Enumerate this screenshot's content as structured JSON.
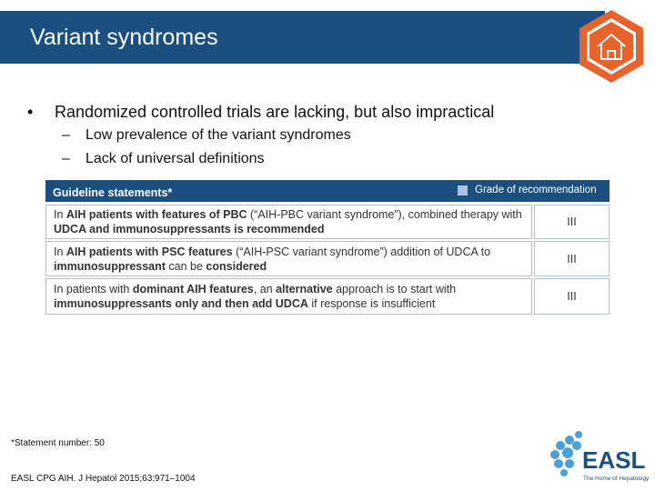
{
  "header": {
    "title": "Variant syndromes"
  },
  "bullets": [
    {
      "text": "Randomized controlled trials are lacking, but also impractical",
      "subs": [
        "Low prevalence of the variant syndromes",
        "Lack of universal definitions"
      ]
    }
  ],
  "table": {
    "header": "Guideline statements*",
    "legend": "Grade of recommendation",
    "rows": [
      {
        "segments": [
          {
            "text": "In ",
            "bold": false
          },
          {
            "text": "AIH patients with features of PBC",
            "bold": true
          },
          {
            "text": " (“AIH-PBC variant syndrome”), combined therapy with ",
            "bold": false
          },
          {
            "text": "UDCA and immunosuppressants is recommended",
            "bold": true
          }
        ],
        "grade": "III"
      },
      {
        "segments": [
          {
            "text": "In ",
            "bold": false
          },
          {
            "text": "AIH patients with PSC features",
            "bold": true
          },
          {
            "text": " (“AIH-PSC variant syndrome”) addition of UDCA to ",
            "bold": false
          },
          {
            "text": "immunosuppressant",
            "bold": true
          },
          {
            "text": " can be ",
            "bold": false
          },
          {
            "text": "considered",
            "bold": true
          }
        ],
        "grade": "III"
      },
      {
        "segments": [
          {
            "text": "In patients with ",
            "bold": false
          },
          {
            "text": "dominant AIH features",
            "bold": true
          },
          {
            "text": ", an ",
            "bold": false
          },
          {
            "text": "alternative",
            "bold": true
          },
          {
            "text": " approach is to start with ",
            "bold": false
          },
          {
            "text": "immunosuppressants only and then add UDCA",
            "bold": true
          },
          {
            "text": " if response is insufficient",
            "bold": false
          }
        ],
        "grade": "III"
      }
    ]
  },
  "footnotes": [
    "*Statement number: 50",
    "EASL CPG AIH. J Hepatol 2015;63:971–1004"
  ],
  "logo": {
    "name": "EASL",
    "tagline": "The Home of Hepatology"
  }
}
